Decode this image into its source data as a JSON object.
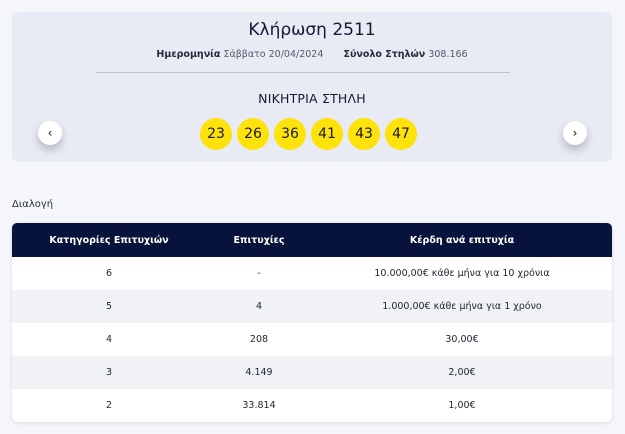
{
  "draw": {
    "title": "Κλήρωση 2511",
    "date_label": "Ημερομηνία",
    "date_value": "Σάββατο 20/04/2024",
    "columns_label": "Σύνολο Στηλών",
    "columns_value": "308.166",
    "winning_label": "ΝΙΚΗΤΡΙΑ ΣΤΗΛΗ",
    "numbers": [
      "23",
      "26",
      "36",
      "41",
      "43",
      "47"
    ],
    "ball_color": "#fde20c"
  },
  "nav": {
    "prev_icon": "chevron-left-icon",
    "prev_glyph": "‹",
    "next_icon": "chevron-right-icon",
    "next_glyph": "›"
  },
  "section_label": "Διαλογή",
  "table": {
    "header_color": "#07133a",
    "headers": [
      "Κατηγορίες Επιτυχιών",
      "Επιτυχίες",
      "Κέρδη ανά επιτυχία"
    ],
    "rows": [
      [
        "6",
        "-",
        "10.000,00€ κάθε μήνα για 10 χρόνια"
      ],
      [
        "5",
        "4",
        "1.000,00€ κάθε μήνα για 1 χρόνο"
      ],
      [
        "4",
        "208",
        "30,00€"
      ],
      [
        "3",
        "4.149",
        "2,00€"
      ],
      [
        "2",
        "33.814",
        "1,00€"
      ]
    ]
  }
}
